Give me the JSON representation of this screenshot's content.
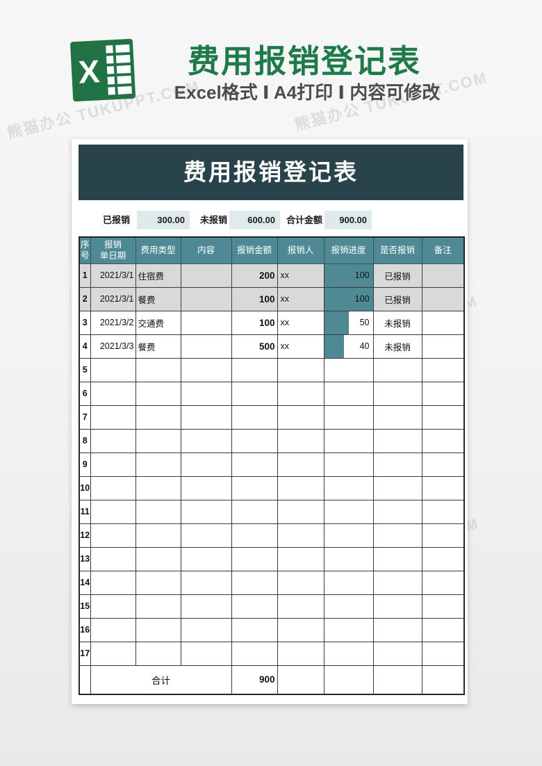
{
  "watermark_text": "熊猫办公 TUKUPPT.COM",
  "hero": {
    "logo_letter": "X",
    "title": "费用报销登记表",
    "subtitle": "Excel格式 Ⅰ A4打印 Ⅰ 内容可修改"
  },
  "sheet": {
    "banner_title": "费用报销登记表",
    "summary": {
      "items": [
        {
          "label": "已报销",
          "value": "300.00"
        },
        {
          "label": "未报销",
          "value": "600.00"
        },
        {
          "label": "合计金额",
          "value": "900.00"
        }
      ]
    },
    "table": {
      "columns": [
        "序\n号",
        "报销\n单日期",
        "费用类型",
        "内容",
        "报销金额",
        "报销人",
        "报销进度",
        "是否报销",
        "备注"
      ],
      "rows": [
        {
          "no": "1",
          "date": "2021/3/1",
          "type": "住宿费",
          "content": "",
          "amount": "200",
          "person": "xx",
          "progress": 100,
          "status": "已报销",
          "note": ""
        },
        {
          "no": "2",
          "date": "2021/3/1",
          "type": "餐费",
          "content": "",
          "amount": "100",
          "person": "xx",
          "progress": 100,
          "status": "已报销",
          "note": ""
        },
        {
          "no": "3",
          "date": "2021/3/2",
          "type": "交通费",
          "content": "",
          "amount": "100",
          "person": "xx",
          "progress": 50,
          "status": "未报销",
          "note": ""
        },
        {
          "no": "4",
          "date": "2021/3/3",
          "type": "餐费",
          "content": "",
          "amount": "500",
          "person": "xx",
          "progress": 40,
          "status": "未报销",
          "note": ""
        }
      ],
      "empty_row_numbers": [
        "5",
        "6",
        "7",
        "8",
        "9",
        "10",
        "11",
        "12",
        "13",
        "14",
        "15",
        "16",
        "17"
      ],
      "footer": {
        "label": "合计",
        "total": "900"
      }
    },
    "colors": {
      "banner_bg": "#28434a",
      "header_teal": "#4e8994",
      "bar_teal": "#4e8994",
      "shaded_row": "#d9d9d9",
      "summary_box": "#dfeaec",
      "brand_green": "#217346",
      "title_green": "#1f7a4a"
    }
  }
}
